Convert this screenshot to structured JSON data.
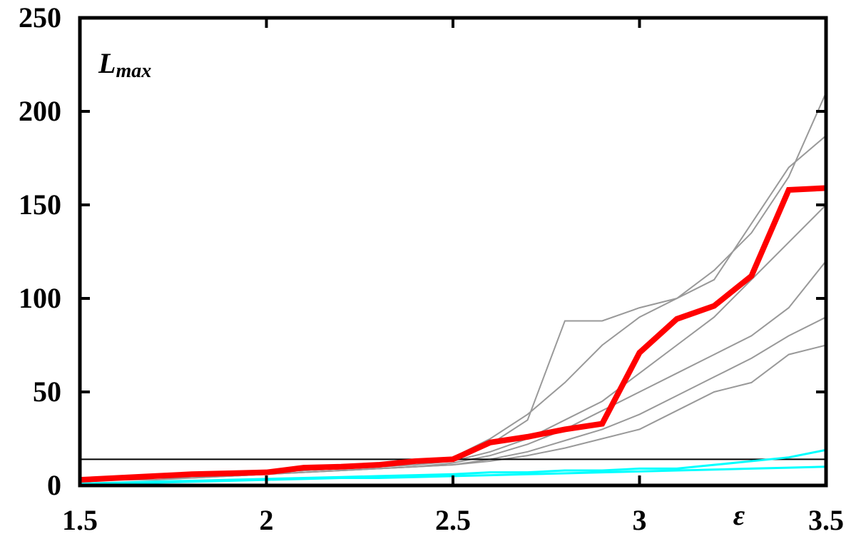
{
  "chart_data": {
    "type": "line",
    "ylabel": {
      "main": "L",
      "sub": "max"
    },
    "xlabel": "ε",
    "x": [
      1.5,
      1.6,
      1.7,
      1.8,
      1.9,
      2.0,
      2.1,
      2.2,
      2.3,
      2.4,
      2.5,
      2.6,
      2.7,
      2.8,
      2.9,
      3.0,
      3.1,
      3.2,
      3.3,
      3.4,
      3.5
    ],
    "series": [
      {
        "color": "#999999",
        "values": [
          2,
          3,
          4,
          5,
          6,
          7,
          8,
          9,
          10,
          12,
          15,
          25,
          38,
          55,
          75,
          90,
          100,
          115,
          135,
          165,
          210
        ]
      },
      {
        "color": "#999999",
        "values": [
          2,
          3,
          4,
          5,
          6,
          7,
          8,
          9,
          10,
          11,
          13,
          18,
          25,
          35,
          45,
          60,
          75,
          90,
          110,
          130,
          150
        ]
      },
      {
        "color": "#999999",
        "values": [
          2,
          3,
          4,
          5,
          5,
          6,
          7,
          8,
          9,
          10,
          12,
          16,
          22,
          30,
          40,
          50,
          60,
          70,
          80,
          95,
          120
        ]
      },
      {
        "color": "#999999",
        "values": [
          2,
          3,
          4,
          4,
          5,
          6,
          7,
          8,
          9,
          10,
          11,
          14,
          18,
          24,
          30,
          38,
          48,
          58,
          68,
          80,
          90
        ]
      },
      {
        "color": "#999999",
        "values": [
          2,
          3,
          3,
          4,
          5,
          6,
          7,
          8,
          9,
          10,
          11,
          13,
          16,
          20,
          25,
          30,
          40,
          50,
          55,
          70,
          75
        ]
      },
      {
        "color": "#999999",
        "values": [
          2,
          3,
          4,
          5,
          6,
          7,
          8,
          9,
          10,
          11,
          14,
          22,
          35,
          88,
          88,
          95,
          100,
          110,
          140,
          170,
          187
        ]
      },
      {
        "color": "#00ffff",
        "values": [
          1,
          1.5,
          2,
          2.5,
          3,
          3.5,
          4,
          4.5,
          5,
          5.5,
          6,
          7,
          7,
          8,
          8,
          9,
          9,
          11,
          13,
          15,
          19
        ]
      },
      {
        "color": "#00ffff",
        "values": [
          1,
          1,
          1.5,
          2,
          2.5,
          3,
          3.5,
          4,
          4,
          4.5,
          5,
          5.5,
          6,
          6.5,
          7,
          7.5,
          8,
          8.5,
          9,
          9.5,
          10
        ]
      },
      {
        "color": "#ff0000",
        "values": [
          3,
          4,
          5,
          6,
          6.5,
          7,
          9.5,
          10,
          11,
          13,
          14,
          23,
          26,
          30,
          33,
          71,
          89,
          96,
          112,
          158,
          159
        ]
      }
    ],
    "reference_line": 14,
    "xlim": [
      1.5,
      3.5
    ],
    "xticks": [
      1.5,
      2,
      2.5,
      3,
      3.5
    ],
    "ylim": [
      0,
      250
    ],
    "yticks": [
      0,
      50,
      100,
      150,
      200,
      250
    ]
  }
}
